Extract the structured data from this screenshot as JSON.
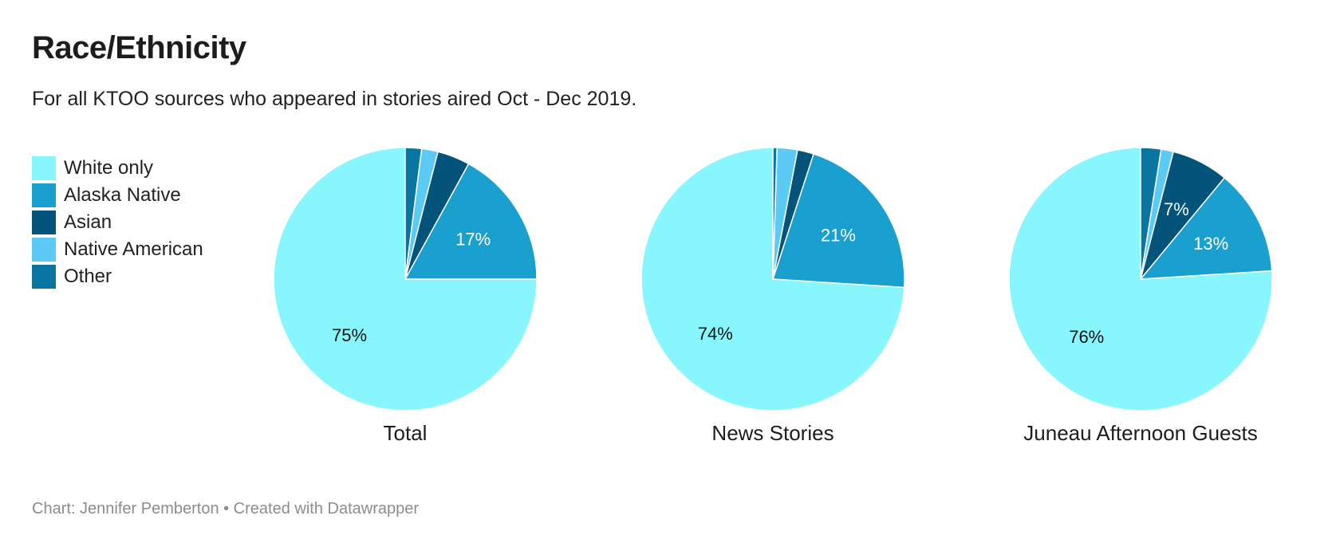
{
  "header": {
    "title": "Race/Ethnicity",
    "subtitle": "For all KTOO sources who appeared in stories aired Oct - Dec 2019."
  },
  "legend": [
    {
      "label": "White only",
      "color": "#88f6fd"
    },
    {
      "label": "Alaska Native",
      "color": "#1aa0cf"
    },
    {
      "label": "Asian",
      "color": "#03537a"
    },
    {
      "label": "Native American",
      "color": "#5bcbf5"
    },
    {
      "label": "Other",
      "color": "#0876a1"
    }
  ],
  "chart_data": [
    {
      "type": "pie",
      "title": "Total",
      "categories": [
        "White only",
        "Alaska Native",
        "Asian",
        "Native American",
        "Other"
      ],
      "values": [
        75,
        17,
        4,
        2,
        2
      ],
      "labels": [
        "75%",
        "17%",
        "",
        "",
        ""
      ]
    },
    {
      "type": "pie",
      "title": "News Stories",
      "categories": [
        "White only",
        "Alaska Native",
        "Asian",
        "Native American",
        "Other"
      ],
      "values": [
        74,
        21,
        2,
        2.5,
        0.5
      ],
      "labels": [
        "74%",
        "21%",
        "",
        "",
        ""
      ]
    },
    {
      "type": "pie",
      "title": "Juneau Afternoon Guests",
      "categories": [
        "White only",
        "Alaska Native",
        "Asian",
        "Native American",
        "Other"
      ],
      "values": [
        76,
        13,
        7,
        1.5,
        2.5
      ],
      "labels": [
        "76%",
        "13%",
        "7%",
        "",
        ""
      ]
    }
  ],
  "footer": {
    "credit": "Chart: Jennifer Pemberton • Created with Datawrapper"
  }
}
